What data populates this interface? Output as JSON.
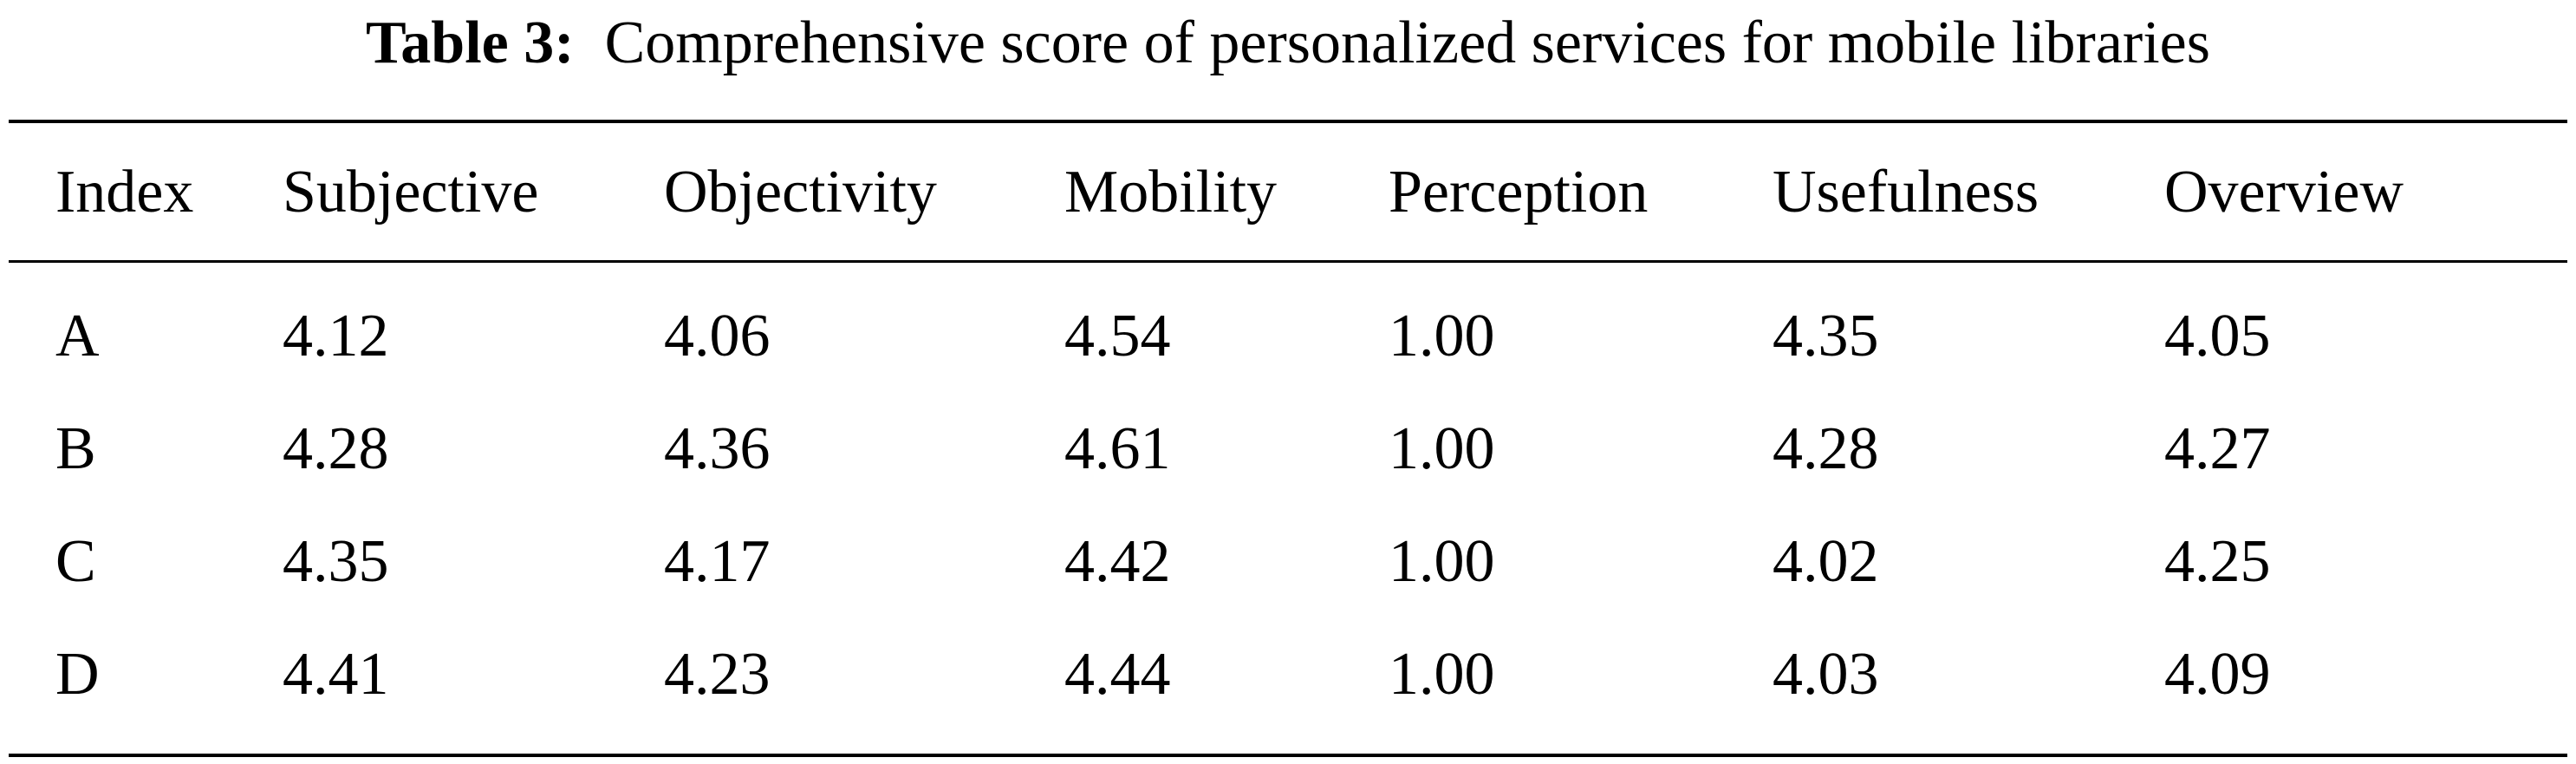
{
  "caption": {
    "label": "Table 3:",
    "text": "Comprehensive score of personalized services for mobile libraries"
  },
  "table": {
    "columns": [
      "Index",
      "Subjective",
      "Objectivity",
      "Mobility",
      "Perception",
      "Usefulness",
      "Overview"
    ],
    "rows": [
      [
        "A",
        "4.12",
        "4.06",
        "4.54",
        "1.00",
        "4.35",
        "4.05"
      ],
      [
        "B",
        "4.28",
        "4.36",
        "4.61",
        "1.00",
        "4.28",
        "4.27"
      ],
      [
        "C",
        "4.35",
        "4.17",
        "4.42",
        "1.00",
        "4.02",
        "4.25"
      ],
      [
        "D",
        "4.41",
        "4.23",
        "4.44",
        "1.00",
        "4.03",
        "4.09"
      ]
    ]
  }
}
